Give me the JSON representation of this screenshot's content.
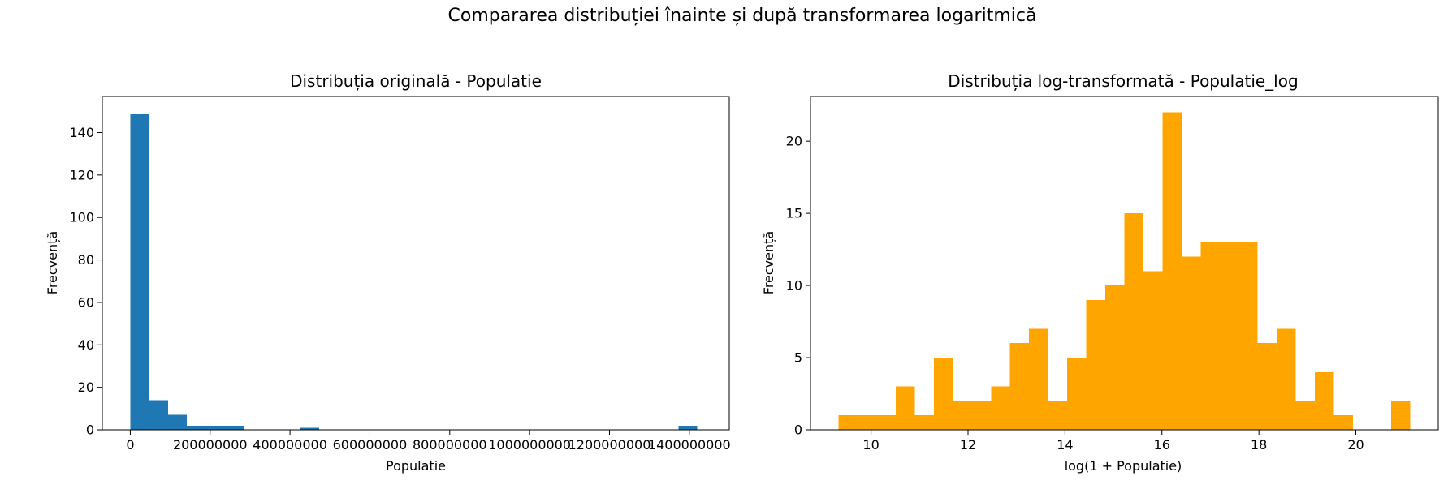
{
  "figure": {
    "suptitle": "Compararea distribuției înainte și după transformarea logaritmică"
  },
  "chart_data": [
    {
      "type": "bar",
      "title": "Distribuția originală - Populatie",
      "xlabel": "Populatie",
      "ylabel": "Frecvență",
      "color": "#1f77b4",
      "xlim": [
        -70000000,
        1500000000
      ],
      "ylim": [
        0,
        157
      ],
      "xticks": [
        0,
        200000000,
        400000000,
        600000000,
        800000000,
        1000000000,
        1200000000,
        1400000000
      ],
      "xtick_labels": [
        "0",
        "200000000",
        "400000000",
        "600000000",
        "800000000",
        "1000000000",
        "1200000000",
        "1400000000"
      ],
      "yticks": [
        0,
        20,
        40,
        60,
        80,
        100,
        120,
        140
      ],
      "bin_start": 0,
      "bin_width": 47333000,
      "counts": [
        149,
        14,
        7,
        2,
        2,
        2,
        0,
        0,
        0,
        1,
        0,
        0,
        0,
        0,
        0,
        0,
        0,
        0,
        0,
        0,
        0,
        0,
        0,
        0,
        0,
        0,
        0,
        0,
        0,
        2
      ]
    },
    {
      "type": "bar",
      "title": "Distribuția log-transformată - Populatie_log",
      "xlabel": "log(1 + Populatie)",
      "ylabel": "Frecvență",
      "color": "#ffa500",
      "xlim": [
        8.75,
        21.7
      ],
      "ylim": [
        0,
        23.1
      ],
      "xticks": [
        10,
        12,
        14,
        16,
        18,
        20
      ],
      "xtick_labels": [
        "10",
        "12",
        "14",
        "16",
        "18",
        "20"
      ],
      "yticks": [
        0,
        5,
        10,
        15,
        20
      ],
      "bin_start": 9.33,
      "bin_width": 0.393,
      "counts": [
        1,
        1,
        1,
        3,
        1,
        5,
        2,
        2,
        3,
        6,
        7,
        2,
        5,
        9,
        10,
        15,
        11,
        22,
        12,
        13,
        13,
        13,
        6,
        7,
        2,
        4,
        1,
        0,
        0,
        2
      ]
    }
  ]
}
